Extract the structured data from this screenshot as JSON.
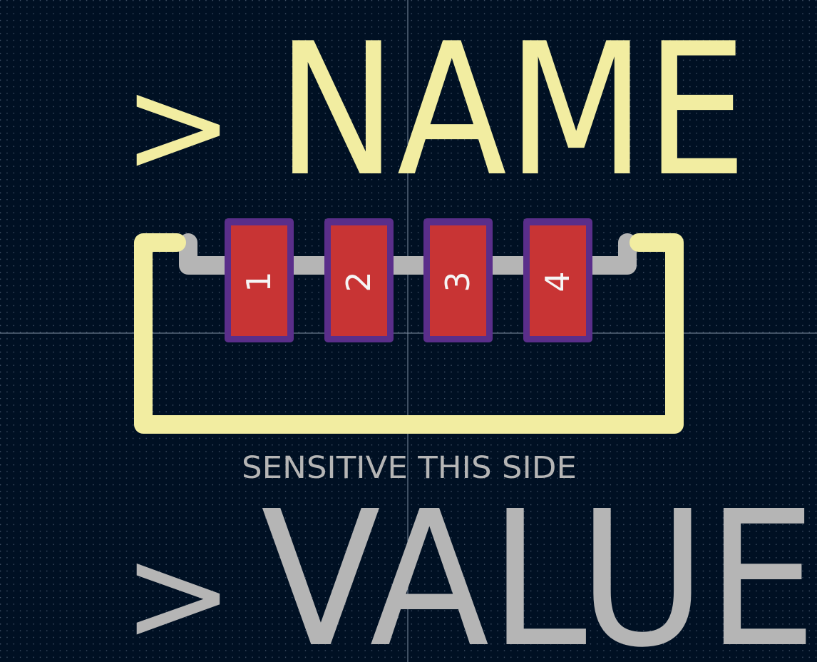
{
  "labels": {
    "name_prefix": ">",
    "name_text": "NAME",
    "value_prefix": ">",
    "value_text": "VALUE",
    "note_text": "SENSITIVE THIS SIDE"
  },
  "pads": [
    {
      "number": "1"
    },
    {
      "number": "2"
    },
    {
      "number": "3"
    },
    {
      "number": "4"
    }
  ],
  "colors": {
    "background": "#001023",
    "grid_dot": "#4a5a70",
    "crosshair": "#7f8fa3",
    "silkscreen": "#f2eda1",
    "fab_layer": "#b5b5b5",
    "pad_fill": "#c83434",
    "pad_outline": "#5a2e8a",
    "pad_number": "#f5f5f5"
  }
}
